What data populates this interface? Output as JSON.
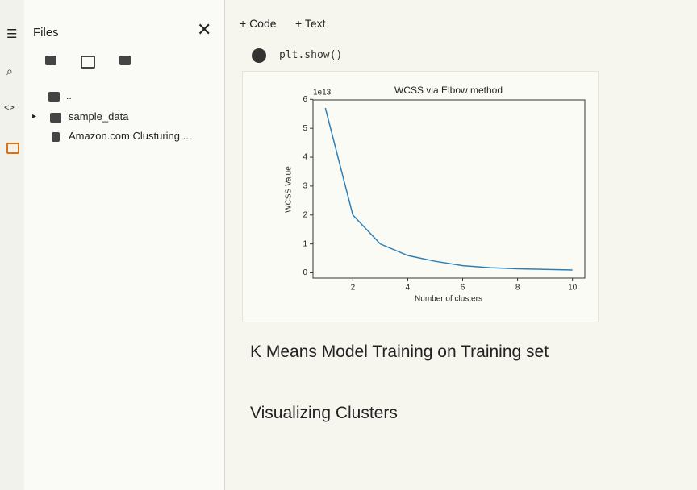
{
  "sidebar": {
    "title": "Files",
    "items": [
      "..",
      "sample_data",
      "Amazon.com Clusturing ..."
    ]
  },
  "toolbar": {
    "buttons": [
      "+ Code",
      "+ Text"
    ]
  },
  "cell": {
    "code": "plt.show()"
  },
  "chart_data": {
    "type": "line",
    "title": "WCSS via Elbow method",
    "x_label": "Number of clusters",
    "y_label": "WCSS Value",
    "y_offset_label": "1e13",
    "x": [
      1,
      2,
      3,
      4,
      5,
      6,
      7,
      8,
      9,
      10
    ],
    "values": [
      5.7,
      2.0,
      1.0,
      0.6,
      0.4,
      0.25,
      0.18,
      0.14,
      0.12,
      0.1
    ],
    "color": "#2f7fb5",
    "xlim": [
      0.55,
      10.45
    ],
    "ylim": [
      -0.18,
      5.98
    ],
    "xticks": [
      2,
      4,
      6,
      8,
      10
    ],
    "yticks": [
      0,
      1,
      2,
      3,
      4,
      5,
      6
    ],
    "grid": false
  },
  "text_cells": [
    "K Means Model Training on Training set",
    "Visualizing Clusters"
  ]
}
